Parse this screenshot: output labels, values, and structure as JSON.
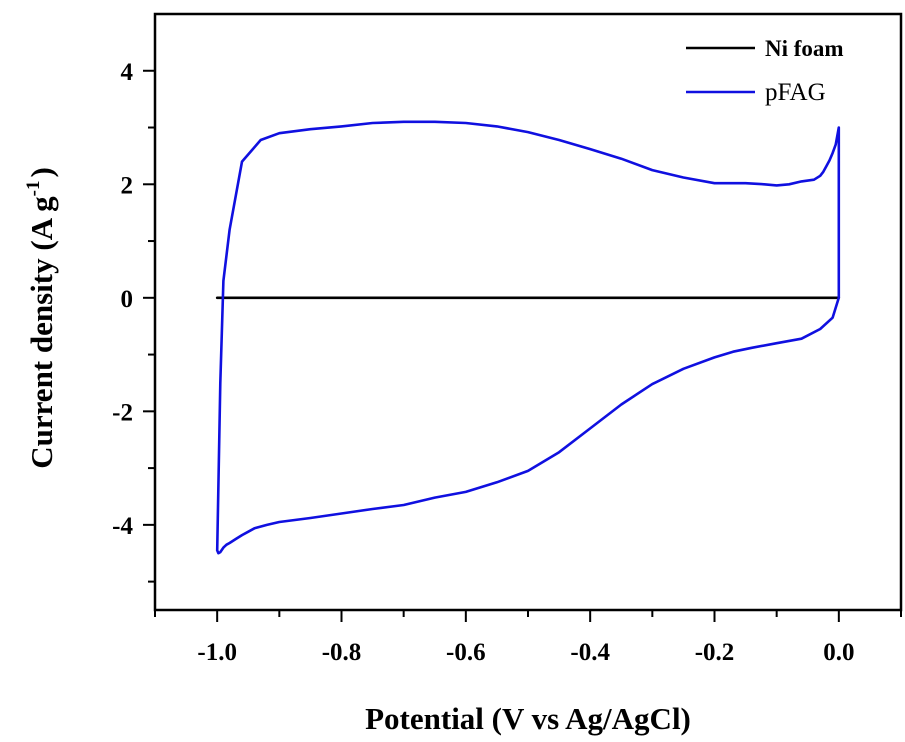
{
  "chart_data": {
    "type": "line",
    "xlabel": "Potential (V vs Ag/AgCl)",
    "ylabel": "Current density (A g",
    "ylabel_superscript": "-1",
    "ylabel_close": ")",
    "xlim": [
      -1.1,
      0.1
    ],
    "ylim": [
      -5.5,
      5.0
    ],
    "x_ticks": [
      -1.0,
      -0.8,
      -0.6,
      -0.4,
      -0.2,
      0.0
    ],
    "x_tick_labels": [
      "-1.0",
      "-0.8",
      "-0.6",
      "-0.4",
      "-0.2",
      "0.0"
    ],
    "y_ticks": [
      -4,
      -2,
      0,
      2,
      4
    ],
    "y_tick_labels": [
      "-4",
      "-2",
      "0",
      "2",
      "4"
    ],
    "grid": false,
    "legend_position": "top-right",
    "series": [
      {
        "name": "Ni foam",
        "color": "#000000",
        "x": [
          -1.0,
          0.0
        ],
        "y": [
          0.0,
          0.0
        ]
      },
      {
        "name": "pFAG",
        "color": "#1010e0",
        "x": [
          -1.0,
          -0.998,
          -0.995,
          -0.99,
          -0.985,
          -0.98,
          -0.97,
          -0.96,
          -0.95,
          -0.94,
          -0.92,
          -0.9,
          -0.85,
          -0.8,
          -0.75,
          -0.7,
          -0.65,
          -0.6,
          -0.55,
          -0.5,
          -0.45,
          -0.4,
          -0.35,
          -0.3,
          -0.25,
          -0.2,
          -0.17,
          -0.14,
          -0.1,
          -0.06,
          -0.03,
          -0.01,
          0.0,
          0.0,
          -0.005,
          -0.01,
          -0.015,
          -0.02,
          -0.025,
          -0.03,
          -0.04,
          -0.06,
          -0.08,
          -0.1,
          -0.12,
          -0.15,
          -0.2,
          -0.25,
          -0.3,
          -0.35,
          -0.4,
          -0.45,
          -0.5,
          -0.55,
          -0.6,
          -0.65,
          -0.7,
          -0.75,
          -0.8,
          -0.85,
          -0.9,
          -0.93,
          -0.96,
          -0.98,
          -0.99,
          -0.995,
          -1.0
        ],
        "y": [
          -4.45,
          -4.5,
          -4.48,
          -4.4,
          -4.35,
          -4.32,
          -4.25,
          -4.18,
          -4.12,
          -4.06,
          -4.0,
          -3.95,
          -3.88,
          -3.8,
          -3.72,
          -3.65,
          -3.52,
          -3.42,
          -3.25,
          -3.05,
          -2.72,
          -2.3,
          -1.88,
          -1.52,
          -1.25,
          -1.05,
          -0.95,
          -0.88,
          -0.8,
          -0.72,
          -0.55,
          -0.35,
          0.0,
          3.0,
          2.7,
          2.55,
          2.42,
          2.32,
          2.22,
          2.15,
          2.08,
          2.05,
          2.0,
          1.98,
          2.0,
          2.02,
          2.02,
          2.12,
          2.25,
          2.45,
          2.62,
          2.78,
          2.92,
          3.02,
          3.08,
          3.1,
          3.1,
          3.08,
          3.02,
          2.97,
          2.9,
          2.78,
          2.4,
          1.2,
          0.3,
          -1.5,
          -4.45
        ]
      }
    ]
  }
}
